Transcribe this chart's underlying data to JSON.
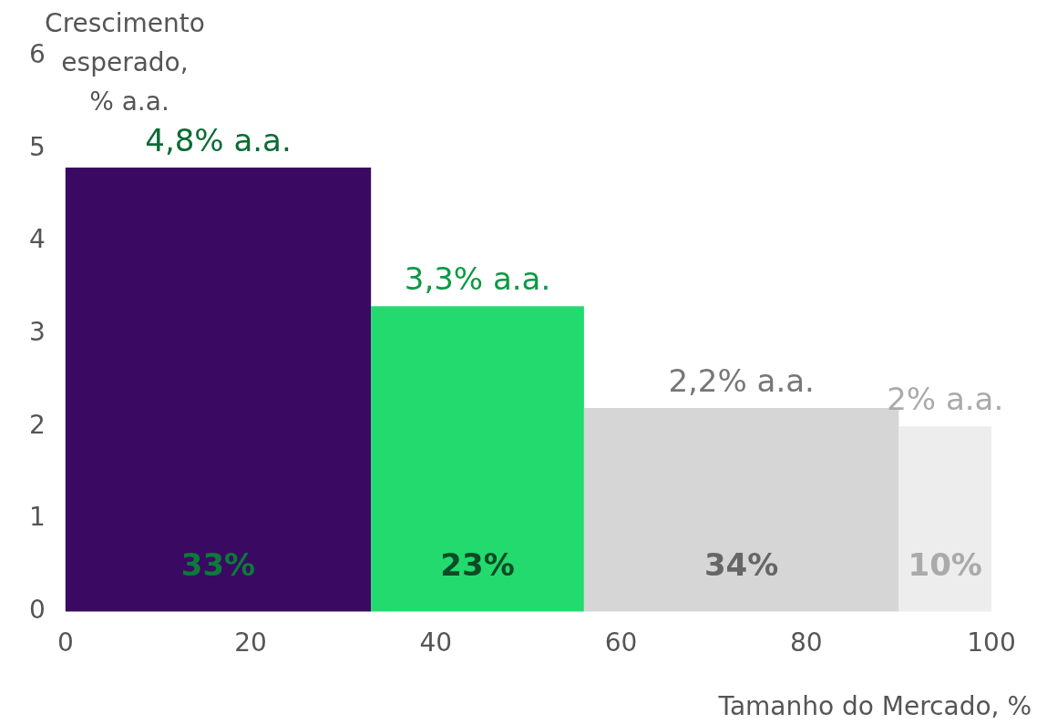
{
  "chart_data": {
    "type": "histogram",
    "xlabel": "Tamanho do Mercado, %",
    "ylabel": "Crescimento esperado, % a.a.",
    "bins": [
      0,
      33,
      56,
      90,
      100
    ],
    "values": [
      4.8,
      3.3,
      2.2,
      2
    ],
    "colors": [
      "#3a0a63",
      "#22da6e",
      "#d6d6d6",
      "#ededed"
    ],
    "value_labels": [
      "4,8% a.a.",
      "3,3% a.a.",
      "2,2% a.a.",
      "2% a.a."
    ],
    "annotations": [
      "33%",
      "23%",
      "34%",
      "10%"
    ],
    "xlim": [
      0,
      100
    ],
    "xticks": [
      0,
      20,
      40,
      60,
      80,
      100
    ],
    "ylim": [
      0,
      6
    ],
    "yticks": [
      0,
      1,
      2,
      3,
      4,
      5,
      6
    ],
    "grid": false,
    "legend": false
  }
}
